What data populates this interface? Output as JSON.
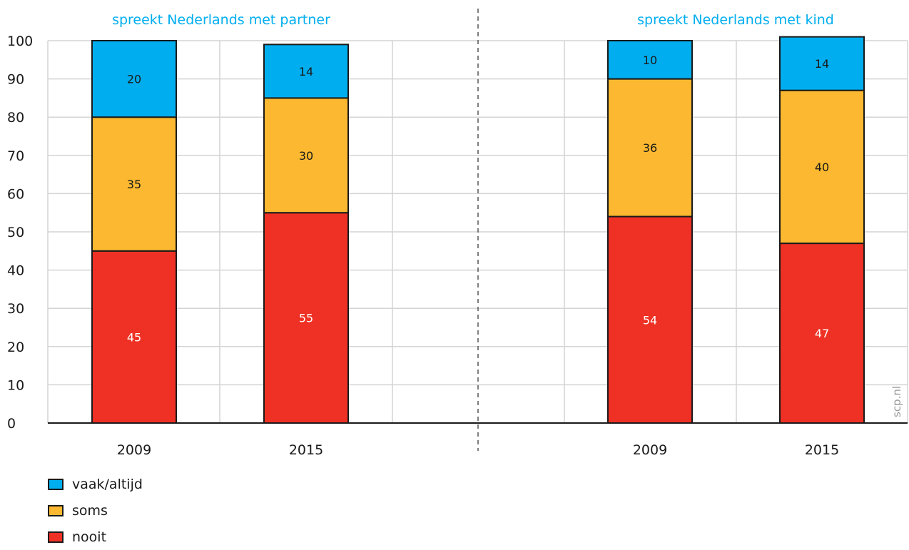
{
  "chart_data": {
    "type": "bar",
    "stacked": true,
    "ylim": [
      0,
      100
    ],
    "yticks": [
      0,
      10,
      20,
      30,
      40,
      50,
      60,
      70,
      80,
      90,
      100
    ],
    "grid": true,
    "legend_position": "bottom-left",
    "series_order": [
      "nooit",
      "soms",
      "vaak/altijd"
    ],
    "colors": {
      "nooit": "#ee3124",
      "soms": "#fbb830",
      "vaak/altijd": "#00aeef",
      "title": "#00aeef"
    },
    "panels": [
      {
        "title": "spreekt Nederlands met partner",
        "categories": [
          "2009",
          "2015"
        ],
        "series": [
          {
            "name": "nooit",
            "values": [
              45,
              55
            ]
          },
          {
            "name": "soms",
            "values": [
              35,
              30
            ]
          },
          {
            "name": "vaak/altijd",
            "values": [
              20,
              14
            ]
          }
        ]
      },
      {
        "title": "spreekt Nederlands met kind",
        "categories": [
          "2009",
          "2015"
        ],
        "series": [
          {
            "name": "nooit",
            "values": [
              54,
              47
            ]
          },
          {
            "name": "soms",
            "values": [
              36,
              40
            ]
          },
          {
            "name": "vaak/altijd",
            "values": [
              10,
              14
            ]
          }
        ]
      }
    ]
  },
  "legend": {
    "items": [
      {
        "label": "vaak/altijd",
        "color": "#00aeef"
      },
      {
        "label": "soms",
        "color": "#fbb830"
      },
      {
        "label": "nooit",
        "color": "#ee3124"
      }
    ]
  },
  "watermark": "scp.nl"
}
